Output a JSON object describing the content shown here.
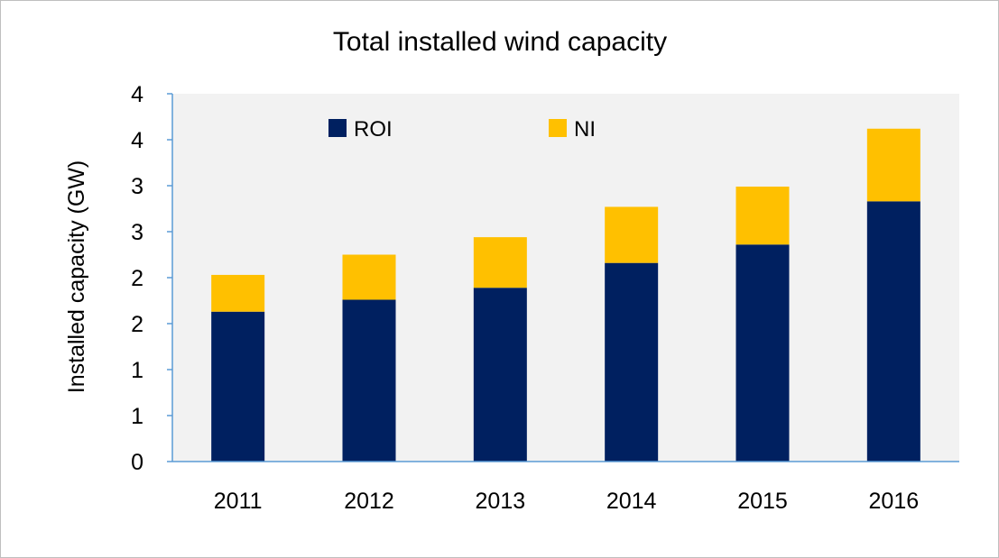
{
  "chart_data": {
    "type": "bar",
    "stacked": true,
    "title": "Total installed wind capacity",
    "xlabel": "",
    "ylabel": "Installed  capacity (GW)",
    "categories": [
      "2011",
      "2012",
      "2013",
      "2014",
      "2015",
      "2016"
    ],
    "series": [
      {
        "name": "ROI",
        "color": "#002060",
        "values": [
          1.63,
          1.76,
          1.89,
          2.16,
          2.36,
          2.83
        ]
      },
      {
        "name": "NI",
        "color": "#FFC000",
        "values": [
          0.4,
          0.49,
          0.55,
          0.61,
          0.63,
          0.79
        ]
      }
    ],
    "ylim": [
      0,
      4
    ],
    "ytick_values": [
      0,
      0.5,
      1,
      1.5,
      2,
      2.5,
      3,
      3.5,
      4
    ],
    "ytick_labels": [
      "0",
      "1",
      "1",
      "2",
      "2",
      "3",
      "3",
      "4",
      "4"
    ],
    "grid": false,
    "legend": "top",
    "plot_background": "#F2F2F2",
    "axis_color": "#5B9BD5"
  }
}
